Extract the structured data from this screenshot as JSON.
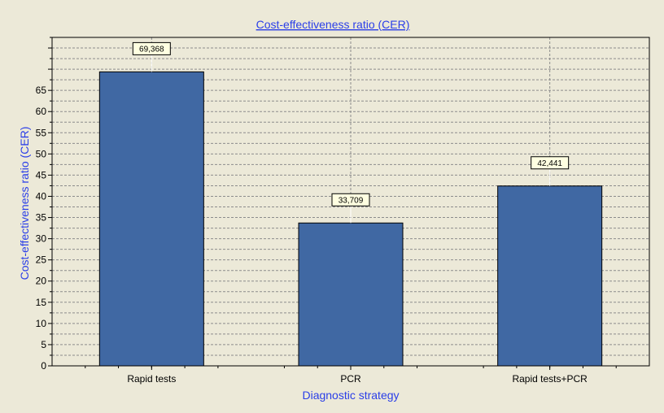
{
  "chart_data": {
    "type": "bar",
    "title": "Cost-effectiveness ratio (CER)",
    "xlabel": "Diagnostic strategy",
    "ylabel": "Cost-effectiveness ratio (CER)",
    "categories": [
      "Rapid tests",
      "PCR",
      "Rapid tests+PCR"
    ],
    "values": [
      69.368,
      33.709,
      42.441
    ],
    "data_labels": [
      "69,368",
      "33,709",
      "42,441"
    ],
    "ylim": [
      0,
      77.5
    ],
    "yticks": [
      0,
      5,
      10,
      15,
      20,
      25,
      30,
      35,
      40,
      45,
      50,
      55,
      60,
      65
    ],
    "ytick_labels": [
      "0",
      "5",
      "10",
      "15",
      "20",
      "25",
      "30",
      "35",
      "40",
      "45",
      "50",
      "55",
      "60",
      "65"
    ],
    "grid": true,
    "legend": "none",
    "colors": {
      "bar": "#4068a3",
      "background": "#ece9d8",
      "title": "#2a3ee8",
      "label_box": "#ffffe1",
      "grid": "#8c8c8c"
    }
  }
}
